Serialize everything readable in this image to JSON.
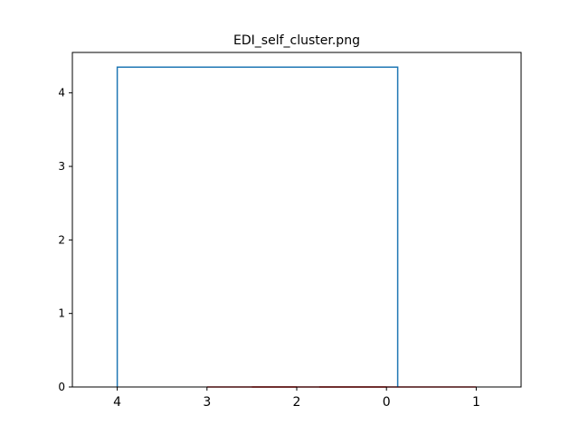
{
  "chart_data": {
    "type": "dendrogram",
    "title": "EDI_self_cluster.png",
    "xlabel": "",
    "ylabel": "",
    "ylim": [
      0,
      4.55
    ],
    "y_ticks": [
      "0",
      "1",
      "2",
      "3",
      "4"
    ],
    "leaf_order": [
      "4",
      "3",
      "2",
      "0",
      "1"
    ],
    "links": [
      {
        "name": "link-3-2",
        "left": "3",
        "right": "2",
        "height": 0.0,
        "color": "#d62728"
      },
      {
        "name": "link-32-0",
        "left": "3+2",
        "right": "0",
        "height": 0.0,
        "color": "#d62728"
      },
      {
        "name": "link-320-1",
        "left": "3+2+0",
        "right": "1",
        "height": 0.0,
        "color": "#d62728"
      },
      {
        "name": "link-root",
        "left": "4",
        "right": "3+2+0+1",
        "height": 4.35,
        "color": "#1f77b4"
      }
    ],
    "grid": false,
    "colors": {
      "above_threshold": "#1f77b4",
      "cluster": "#d62728",
      "cluster_overlay": "#ff7f0e"
    }
  }
}
